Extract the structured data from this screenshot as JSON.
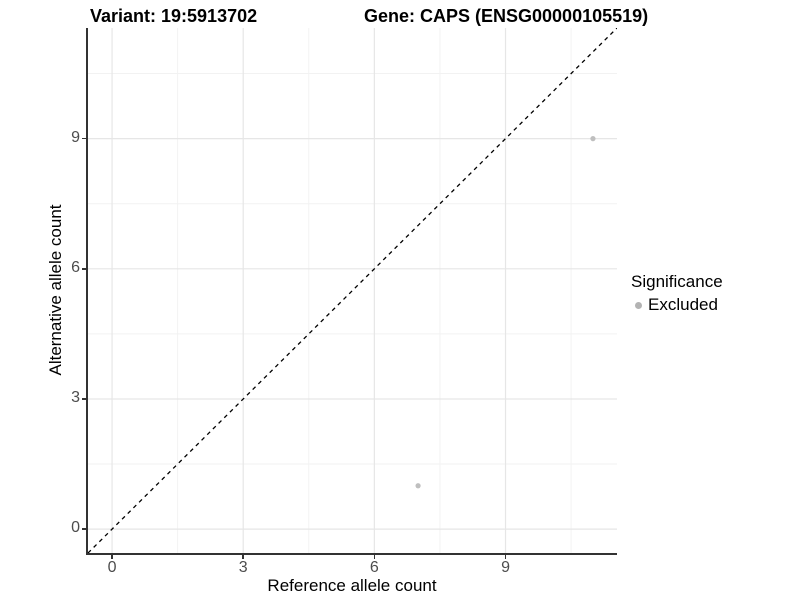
{
  "titles": {
    "variant": "Variant: 19:5913702",
    "gene": "Gene: CAPS (ENSG00000105519)"
  },
  "chart_data": {
    "type": "scatter",
    "title_left": "Variant: 19:5913702",
    "title_right": "Gene: CAPS (ENSG00000105519)",
    "xlabel": "Reference allele count",
    "ylabel": "Alternative allele count",
    "xlim": [
      -0.55,
      11.55
    ],
    "ylim": [
      -0.55,
      11.55
    ],
    "xticks": [
      0,
      3,
      6,
      9
    ],
    "yticks": [
      0,
      3,
      6,
      9
    ],
    "minor_xticks": [
      1.5,
      4.5,
      7.5,
      10.5
    ],
    "minor_yticks": [
      1.5,
      4.5,
      7.5,
      10.5
    ],
    "grid": "on",
    "identity_line": {
      "style": "dashed",
      "color": "#000000",
      "equation": "y = x"
    },
    "series": [
      {
        "name": "Excluded",
        "color": "#bfbfbf",
        "points": [
          {
            "x": 11,
            "y": 9
          },
          {
            "x": 7,
            "y": 1
          }
        ]
      }
    ],
    "legend": {
      "title": "Significance",
      "position": "right",
      "items": [
        {
          "label": "Excluded",
          "color": "#b3b3b3"
        }
      ]
    }
  },
  "colors": {
    "background": "#ffffff",
    "axis_line": "#333333",
    "tick_label": "#4d4d4d",
    "grid_major": "#e6e6e6",
    "grid_minor": "#f2f2f2",
    "point": "#bfbfbf",
    "identity_line": "#000000"
  }
}
